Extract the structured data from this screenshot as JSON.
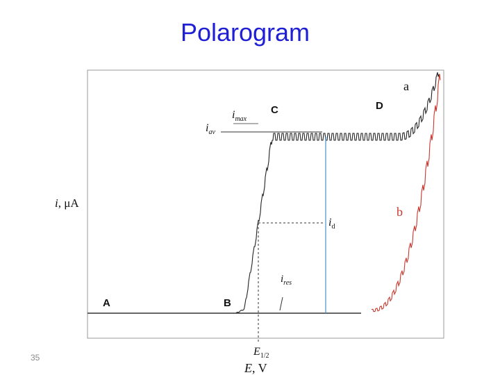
{
  "slide": {
    "title": "Polarogram",
    "page_number": "35"
  },
  "axes": {
    "y_label_italic": "i",
    "y_label_unit": ", μA",
    "x_label_italic": "E",
    "x_label_unit": ", V"
  },
  "labels": {
    "point_a": "A",
    "point_b": "B",
    "point_c": "C",
    "point_d": "D",
    "curve_a": "a",
    "curve_b": "b",
    "i_max": "max",
    "i_av": "av",
    "i_d": "d",
    "i_res": "res",
    "e_half": "1/2"
  },
  "colors": {
    "title": "#1f1fd4",
    "curve_a": "#222222",
    "curve_b": "#c8372d",
    "id_line": "#4a90c8"
  }
}
